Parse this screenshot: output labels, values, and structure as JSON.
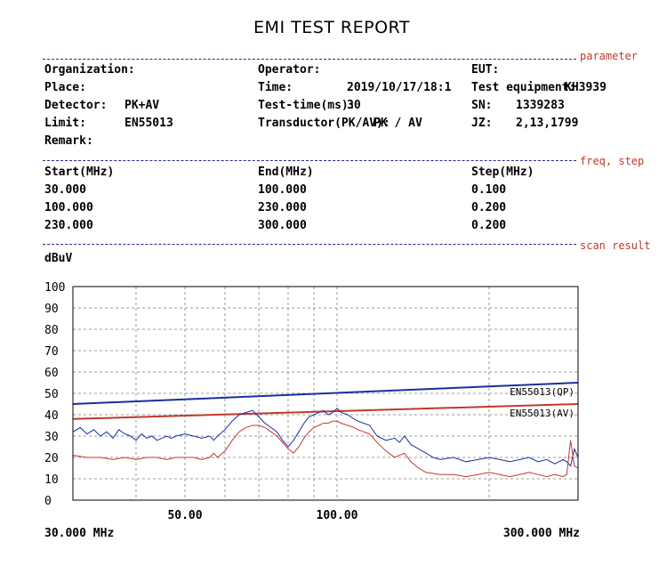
{
  "report": {
    "title": "EMI TEST REPORT"
  },
  "sections": {
    "parameter": "parameter",
    "freq_step": "freq, step",
    "scan_result": "scan result"
  },
  "parameters": {
    "organization_label": "Organization:",
    "organization_value": "",
    "place_label": "Place:",
    "place_value": "",
    "detector_label": "Detector:",
    "detector_value": "PK+AV",
    "limit_label": "Limit:",
    "limit_value": "EN55013",
    "remark_label": "Remark:",
    "remark_value": "",
    "operator_label": "Operator:",
    "operator_value": "",
    "time_label": "Time:",
    "time_value": "2019/10/17/18:1",
    "test_time_label": "Test-time(ms):",
    "test_time_value": "30",
    "transductor_label": "Transductor(PK/AV):",
    "transductor_value": "PK  /  AV",
    "eut_label": "EUT:",
    "eut_value": "",
    "test_equipment_label": "Test equipment:",
    "test_equipment_value": "KH3939",
    "sn_label": "SN:",
    "sn_value": "1339283",
    "jz_label": "JZ:",
    "jz_value": "2,13,1799"
  },
  "freq_table": {
    "headers": [
      "Start(MHz)",
      "End(MHz)",
      "Step(MHz)"
    ],
    "rows": [
      [
        "30.000",
        "100.000",
        "0.100"
      ],
      [
        "100.000",
        "230.000",
        "0.200"
      ],
      [
        "230.000",
        "300.000",
        "0.200"
      ]
    ]
  },
  "chart_data": {
    "type": "line",
    "ylabel": "dBuV",
    "x_scale": "log",
    "xlim": [
      30,
      300
    ],
    "ylim": [
      0,
      100
    ],
    "y_ticks": [
      "0",
      "10",
      "20",
      "30",
      "40",
      "50",
      "60",
      "70",
      "80",
      "90",
      "100"
    ],
    "x_tick_labels": [
      {
        "x": 50,
        "label": "50.00"
      },
      {
        "x": 100,
        "label": "100.00"
      }
    ],
    "x_start_label": "30.000 MHz",
    "x_end_label": "300.000 MHz",
    "grid": true,
    "limits": [
      {
        "name": "EN55013(QP)",
        "color": "#1a2fa0",
        "x": [
          30,
          300
        ],
        "y": [
          45,
          55
        ]
      },
      {
        "name": "EN55013(AV)",
        "color": "#c0392b",
        "x": [
          30,
          300
        ],
        "y": [
          38,
          45
        ]
      }
    ],
    "series": [
      {
        "color": "#1a2fa0",
        "x": [
          30,
          31,
          32,
          33,
          34,
          35,
          36,
          37,
          38,
          39,
          40,
          41,
          42,
          43,
          44,
          45,
          46,
          47,
          48,
          50,
          52,
          54,
          56,
          57,
          58,
          60,
          62,
          64,
          66,
          68,
          70,
          72,
          74,
          76,
          78,
          80,
          82,
          84,
          86,
          88,
          90,
          92,
          94,
          96,
          98,
          100,
          102,
          105,
          108,
          110,
          113,
          116,
          120,
          125,
          130,
          133,
          136,
          140,
          145,
          150,
          155,
          160,
          170,
          180,
          190,
          200,
          210,
          220,
          230,
          240,
          250,
          260,
          270,
          280,
          285,
          290,
          295,
          300
        ],
        "y": [
          32,
          34,
          31,
          33,
          30,
          32,
          29,
          33,
          31,
          30,
          28,
          31,
          29,
          30,
          28,
          29,
          30,
          29,
          30,
          31,
          30,
          29,
          30,
          28,
          30,
          33,
          37,
          40,
          41,
          42,
          39,
          36,
          34,
          32,
          28,
          25,
          28,
          32,
          36,
          39,
          40,
          41,
          42,
          40,
          41,
          43,
          41,
          40,
          38,
          37,
          36,
          35,
          30,
          28,
          29,
          27,
          30,
          26,
          24,
          22,
          20,
          19,
          20,
          18,
          19,
          20,
          19,
          18,
          19,
          20,
          18,
          19,
          17,
          19,
          18,
          16,
          24,
          20
        ]
      },
      {
        "color": "#c0392b",
        "x": [
          30,
          32,
          34,
          36,
          38,
          40,
          42,
          44,
          46,
          48,
          50,
          52,
          54,
          56,
          57,
          58,
          60,
          62,
          64,
          66,
          68,
          70,
          72,
          74,
          76,
          78,
          80,
          82,
          84,
          86,
          88,
          90,
          92,
          94,
          96,
          98,
          100,
          102,
          105,
          108,
          110,
          113,
          116,
          120,
          125,
          130,
          133,
          136,
          140,
          145,
          150,
          160,
          170,
          180,
          190,
          200,
          210,
          220,
          230,
          240,
          250,
          260,
          270,
          280,
          285,
          290,
          295,
          300
        ],
        "y": [
          21,
          20,
          20,
          19,
          20,
          19,
          20,
          20,
          19,
          20,
          20,
          20,
          19,
          20,
          22,
          20,
          23,
          28,
          32,
          34,
          35,
          35,
          34,
          32,
          30,
          27,
          24,
          22,
          25,
          29,
          32,
          34,
          35,
          36,
          36,
          37,
          37,
          36,
          35,
          34,
          33,
          32,
          31,
          27,
          23,
          20,
          21,
          22,
          18,
          15,
          13,
          12,
          12,
          11,
          12,
          13,
          12,
          11,
          12,
          13,
          12,
          11,
          12,
          11,
          12,
          28,
          16,
          15
        ]
      }
    ]
  }
}
